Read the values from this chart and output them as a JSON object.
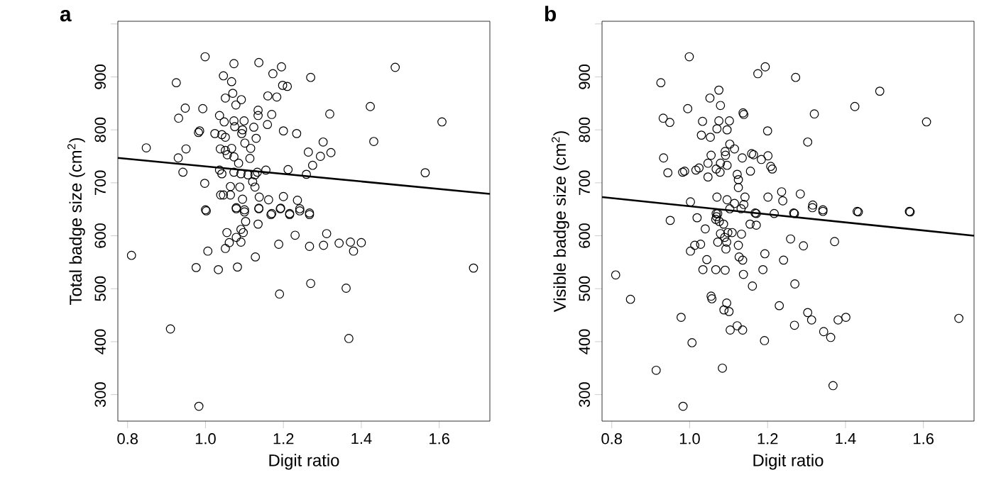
{
  "chart_data": [
    {
      "type": "scatter",
      "title": "a",
      "xlabel": "Digit ratio",
      "ylabel": "Total badge size (cm$^{2}$)",
      "xlim": [
        0.775,
        1.73
      ],
      "ylim": [
        250,
        1005
      ],
      "xticks": [
        {
          "value": 0.8,
          "label": "0.8"
        },
        {
          "value": 1.0,
          "label": "1.0"
        },
        {
          "value": 1.2,
          "label": "1.2"
        },
        {
          "value": 1.4,
          "label": "1.4"
        },
        {
          "value": 1.6,
          "label": "1.6"
        }
      ],
      "yticks": [
        300,
        400,
        500,
        600,
        700,
        800,
        900,
        {
          "value": 1000,
          "label": null
        }
      ],
      "series": [
        {
          "marker": "circle",
          "color": "#000000",
          "x": [
            0.848,
            0.925,
            0.999,
            1.073,
            1.137,
            1.195,
            1.173,
            1.046,
            1.067,
            1.27,
            1.487,
            1.198,
            1.21,
            1.16,
            1.183,
            1.07,
            1.051,
            1.092,
            1.078,
            0.948,
            0.993,
            0.931,
            1.036,
            1.048,
            1.073,
            1.099,
            1.135,
            1.135,
            1.17,
            1.159,
            1.075,
            1.095,
            1.124,
            0.985,
            0.982,
            1.024,
            1.042,
            1.051,
            1.093,
            1.13,
            1.2,
            1.234,
            1.101,
            1.423,
            1.319,
            1.432,
            1.607,
            1.302,
            0.95,
            0.93,
            1.038,
            1.051,
            1.067,
            1.116,
            1.264,
            1.295,
            1.322,
            1.056,
            1.073,
            1.114,
            1.085,
            1.275,
            0.942,
            1.036,
            1.042,
            1.073,
            1.091,
            1.109,
            1.127,
            1.133,
            1.155,
            1.212,
            1.259,
            1.564,
            0.998,
            1.121,
            1.127,
            1.064,
            1.088,
            1.039,
            1.046,
            1.064,
            1.138,
            1.162,
            1.2,
            1.095,
            1.236,
            1.0,
            1.079,
            1.1,
            1.137,
            1.193,
            1.242,
            1.17,
            1.216,
            1.267,
            1.002,
            1.079,
            1.1,
            1.137,
            1.168,
            1.192,
            1.216,
            1.242,
            1.267,
            1.103,
            1.135,
            1.055,
            1.091,
            1.097,
            1.079,
            1.061,
            1.051,
            1.091,
            1.23,
            1.311,
            1.188,
            1.267,
            1.303,
            1.343,
            1.372,
            1.4,
            1.38,
            0.81,
            1.006,
            0.976,
            1.033,
            1.082,
            1.128,
            1.27,
            1.361,
            1.19,
            0.91,
            1.368,
            1.688,
            0.983
          ],
          "values": [
            766,
            889,
            938,
            925,
            927,
            919,
            906,
            902,
            891,
            899,
            918,
            884,
            882,
            864,
            862,
            869,
            860,
            857,
            847,
            841,
            840,
            822,
            827,
            815,
            817,
            817,
            837,
            827,
            829,
            810,
            806,
            800,
            805,
            798,
            795,
            793,
            791,
            786,
            793,
            784,
            798,
            793,
            775,
            844,
            830,
            778,
            815,
            777,
            764,
            747,
            764,
            761,
            765,
            765,
            758,
            750,
            757,
            753,
            749,
            746,
            737,
            733,
            720,
            724,
            717,
            720,
            717,
            715,
            715,
            720,
            724,
            725,
            716,
            719,
            699,
            702,
            692,
            693,
            692,
            677,
            677,
            677,
            673,
            668,
            674,
            669,
            667,
            649,
            653,
            649,
            652,
            652,
            651,
            642,
            642,
            643,
            647,
            651,
            645,
            651,
            640,
            651,
            640,
            647,
            640,
            627,
            622,
            606,
            612,
            606,
            597,
            587,
            576,
            588,
            601,
            604,
            584,
            580,
            582,
            586,
            588,
            587,
            571,
            563,
            571,
            540,
            536,
            541,
            560,
            510,
            501,
            490,
            424,
            406,
            539,
            278
          ]
        },
        {
          "type": "line",
          "color": "#000000",
          "x": [
            0.775,
            1.73
          ],
          "values": [
            747,
            679
          ]
        }
      ]
    },
    {
      "type": "scatter",
      "title": "b",
      "xlabel": "Digit ratio",
      "ylabel": "Visible badge size (cm$^{2}$)",
      "xlim": [
        0.775,
        1.73
      ],
      "ylim": [
        250,
        1005
      ],
      "xticks": [
        {
          "value": 0.8,
          "label": "0.8"
        },
        {
          "value": 1.0,
          "label": "1.0"
        },
        {
          "value": 1.2,
          "label": "1.2"
        },
        {
          "value": 1.4,
          "label": "1.4"
        },
        {
          "value": 1.6,
          "label": "1.6"
        }
      ],
      "yticks": [
        300,
        400,
        500,
        600,
        700,
        800,
        900,
        {
          "value": 1000,
          "label": null
        }
      ],
      "series": [
        {
          "marker": "circle",
          "color": "#000000",
          "x": [
            0.926,
            0.999,
            1.194,
            1.175,
            1.272,
            1.488,
            1.075,
            1.052,
            1.079,
            0.995,
            1.424,
            1.137,
            1.139,
            1.32,
            0.932,
            0.949,
            1.033,
            1.075,
            1.102,
            1.608,
            1.07,
            1.096,
            1.2,
            1.03,
            1.053,
            1.303,
            1.103,
            1.115,
            1.091,
            1.092,
            1.055,
            1.159,
            1.164,
            0.933,
            1.135,
            1.201,
            1.184,
            1.047,
            1.079,
            1.096,
            1.208,
            1.212,
            1.024,
            1.016,
            0.987,
            0.982,
            0.944,
            1.068,
            1.078,
            1.156,
            1.122,
            1.047,
            1.125,
            1.125,
            1.002,
            1.07,
            1.096,
            1.115,
            1.142,
            1.139,
            1.201,
            1.236,
            1.239,
            1.284,
            1.316,
            1.342,
            1.43,
            1.564,
            1.072,
            1.019,
            1.168,
            1.217,
            1.267,
            1.068,
            1.069,
            1.067,
            0.95,
            1.04,
            1.087,
            1.103,
            1.132,
            1.171,
            1.269,
            1.315,
            1.342,
            1.433,
            1.566,
            1.155,
            1.171,
            1.076,
            1.079,
            1.098,
            1.109,
            1.133,
            1.09,
            1.072,
            1.095,
            1.093,
            1.125,
            1.013,
            1.028,
            1.002,
            1.259,
            1.292,
            1.372,
            1.193,
            1.127,
            1.136,
            1.241,
            1.044,
            1.034,
            1.067,
            1.091,
            1.188,
            1.138,
            0.81,
            1.27,
            1.161,
            0.848,
            1.055,
            1.057,
            1.095,
            1.23,
            1.088,
            1.101,
            1.303,
            1.313,
            1.269,
            1.381,
            1.401,
            0.978,
            1.691,
            1.122,
            1.104,
            1.136,
            1.344,
            1.362,
            1.006,
            1.192,
            0.914,
            1.084,
            1.368,
            0.983
          ],
          "values": [
            889,
            938,
            919,
            906,
            899,
            873,
            875,
            860,
            846,
            840,
            844,
            832,
            829,
            830,
            822,
            814,
            816,
            817,
            817,
            815,
            802,
            800,
            798,
            790,
            786,
            777,
            773,
            764,
            759,
            752,
            752,
            755,
            753,
            747,
            747,
            751,
            744,
            737,
            737,
            733,
            731,
            726,
            728,
            724,
            722,
            720,
            719,
            726,
            720,
            722,
            716,
            711,
            706,
            691,
            664,
            673,
            668,
            661,
            673,
            659,
            673,
            683,
            666,
            679,
            658,
            649,
            646,
            646,
            642,
            634,
            643,
            642,
            643,
            642,
            636,
            631,
            629,
            613,
            622,
            651,
            651,
            642,
            642,
            653,
            646,
            645,
            645,
            622,
            620,
            627,
            604,
            606,
            606,
            603,
            597,
            588,
            588,
            575,
            582,
            582,
            584,
            571,
            594,
            581,
            589,
            566,
            560,
            554,
            554,
            555,
            536,
            536,
            535,
            536,
            527,
            526,
            509,
            505,
            480,
            486,
            481,
            473,
            468,
            460,
            457,
            455,
            441,
            431,
            441,
            446,
            446,
            444,
            430,
            422,
            422,
            419,
            408,
            398,
            402,
            346,
            350,
            317,
            278
          ]
        },
        {
          "type": "line",
          "color": "#000000",
          "x": [
            0.775,
            1.73
          ],
          "values": [
            673,
            600
          ]
        }
      ]
    }
  ]
}
